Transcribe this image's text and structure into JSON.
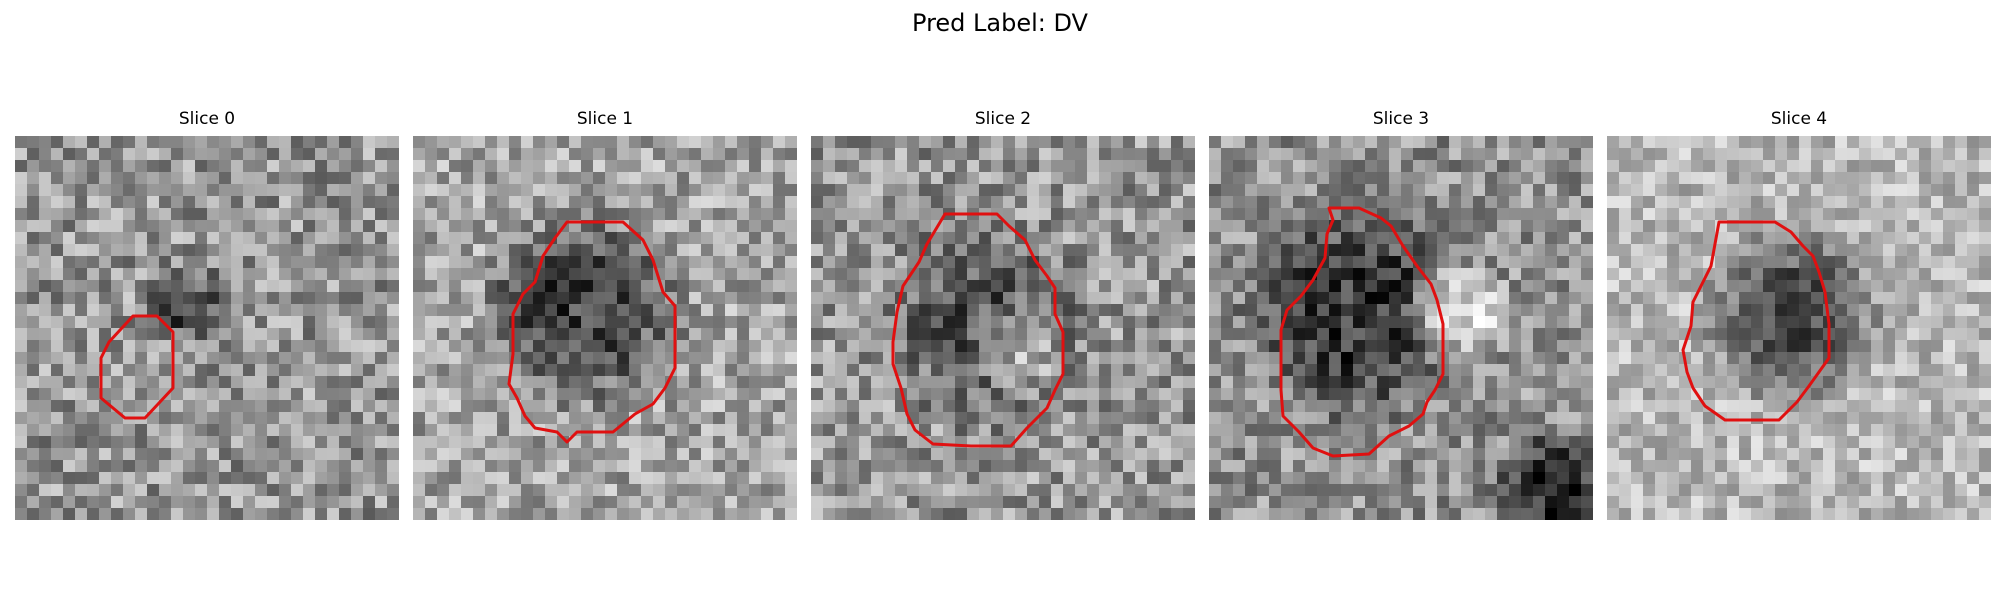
{
  "figure": {
    "title": "Pred Label: DV"
  },
  "panels": [
    {
      "title": "Slice 0",
      "style": "small-lesion",
      "seed": 11
    },
    {
      "title": "Slice 1",
      "style": "dark-lesion",
      "seed": 23
    },
    {
      "title": "Slice 2",
      "style": "ring-lesion",
      "seed": 37
    },
    {
      "title": "Slice 3",
      "style": "dark-crescent",
      "seed": 41
    },
    {
      "title": "Slice 4",
      "style": "dark-lesion-bright-bg",
      "seed": 59
    }
  ],
  "overlay": {
    "contour_color": "#e01010",
    "colormap": "gray"
  }
}
